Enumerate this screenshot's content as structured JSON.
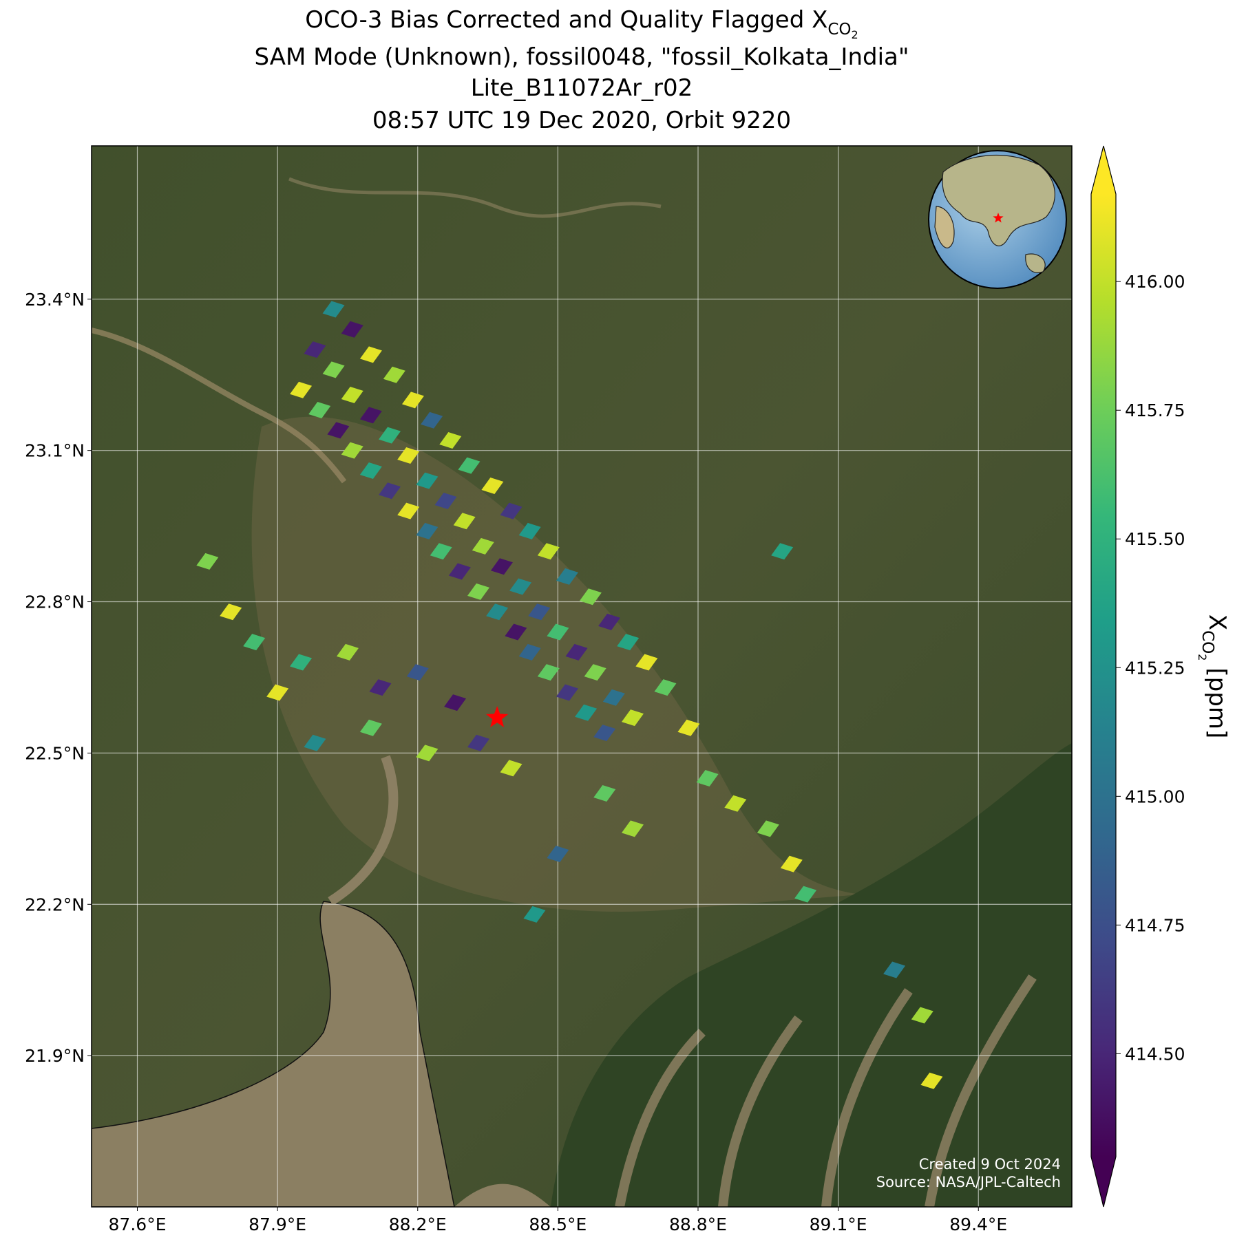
{
  "chart_data": {
    "type": "map",
    "title_lines": [
      "OCO-3 Bias Corrected and Quality Flagged X",
      "SAM Mode (Unknown), fossil0048, \"fossil_Kolkata_India\"",
      "Lite_B11072Ar_r02",
      "08:57 UTC 19 Dec 2020, Orbit 9220"
    ],
    "symbol": {
      "base": "X",
      "sub": "CO",
      "subsub": "2"
    },
    "colorbar_unit": "[ppm]",
    "credits": [
      "Created 9 Oct 2024",
      "Source: NASA/JPL-Caltech"
    ],
    "xlim": [
      87.502,
      89.6
    ],
    "ylim": [
      21.6,
      23.704
    ],
    "xticks": [
      {
        "value": 87.6,
        "label": "87.6°E"
      },
      {
        "value": 87.9,
        "label": "87.9°E"
      },
      {
        "value": 88.2,
        "label": "88.2°E"
      },
      {
        "value": 88.5,
        "label": "88.5°E"
      },
      {
        "value": 88.8,
        "label": "88.8°E"
      },
      {
        "value": 89.1,
        "label": "89.1°E"
      },
      {
        "value": 89.4,
        "label": "89.4°E"
      }
    ],
    "yticks": [
      {
        "value": 21.9,
        "label": "21.9°N"
      },
      {
        "value": 22.2,
        "label": "22.2°N"
      },
      {
        "value": 22.5,
        "label": "22.5°N"
      },
      {
        "value": 22.8,
        "label": "22.8°N"
      },
      {
        "value": 23.1,
        "label": "23.1°N"
      },
      {
        "value": 23.4,
        "label": "23.4°N"
      }
    ],
    "grid": true,
    "clim": [
      414.3,
      416.17
    ],
    "cticks": [
      {
        "value": 414.5,
        "label": "414.50"
      },
      {
        "value": 414.75,
        "label": "414.75"
      },
      {
        "value": 415.0,
        "label": "415.00"
      },
      {
        "value": 415.25,
        "label": "415.25"
      },
      {
        "value": 415.5,
        "label": "415.50"
      },
      {
        "value": 415.75,
        "label": "415.75"
      },
      {
        "value": 416.0,
        "label": "416.00"
      }
    ],
    "colormap": [
      "#440154",
      "#482878",
      "#3e4a89",
      "#31688e",
      "#26828e",
      "#1f9e89",
      "#35b779",
      "#6ece58",
      "#b5de2b",
      "#fde725"
    ],
    "target": {
      "lon": 88.37,
      "lat": 22.57,
      "color": "#ff0000"
    },
    "soundings": {
      "lon": [
        88.02,
        88.06,
        88.1,
        88.15,
        88.19,
        88.23,
        88.27,
        88.31,
        88.36,
        88.4,
        88.44,
        88.48,
        88.52,
        88.57,
        88.61,
        88.65,
        88.69,
        88.73,
        87.98,
        88.02,
        88.06,
        88.1,
        88.14,
        88.18,
        88.22,
        88.26,
        88.3,
        88.34,
        88.38,
        88.42,
        88.46,
        88.5,
        88.54,
        88.58,
        88.62,
        88.66,
        87.95,
        87.99,
        88.03,
        88.06,
        88.1,
        88.14,
        88.18,
        88.22,
        88.25,
        88.29,
        88.33,
        88.37,
        88.41,
        88.44,
        88.48,
        88.52,
        88.56,
        88.6,
        87.75,
        87.8,
        87.85,
        87.9,
        87.95,
        88.05,
        88.12,
        88.2,
        88.28,
        88.1,
        87.98,
        88.22,
        88.33,
        88.4,
        88.78,
        88.82,
        88.88,
        88.95,
        89.0,
        89.03,
        88.6,
        88.66,
        88.5,
        88.45,
        88.98,
        89.22,
        89.28,
        89.3
      ],
      "lat": [
        23.38,
        23.34,
        23.29,
        23.25,
        23.2,
        23.16,
        23.12,
        23.07,
        23.03,
        22.98,
        22.94,
        22.9,
        22.85,
        22.81,
        22.76,
        22.72,
        22.68,
        22.63,
        23.3,
        23.26,
        23.21,
        23.17,
        23.13,
        23.09,
        23.04,
        23.0,
        22.96,
        22.91,
        22.87,
        22.83,
        22.78,
        22.74,
        22.7,
        22.66,
        22.61,
        22.57,
        23.22,
        23.18,
        23.14,
        23.1,
        23.06,
        23.02,
        22.98,
        22.94,
        22.9,
        22.86,
        22.82,
        22.78,
        22.74,
        22.7,
        22.66,
        22.62,
        22.58,
        22.54,
        22.88,
        22.78,
        22.72,
        22.62,
        22.68,
        22.7,
        22.63,
        22.66,
        22.6,
        22.55,
        22.52,
        22.5,
        22.52,
        22.47,
        22.55,
        22.45,
        22.4,
        22.35,
        22.28,
        22.22,
        22.42,
        22.35,
        22.3,
        22.18,
        22.9,
        22.07,
        21.98,
        21.85
      ],
      "xco2": [
        415.2,
        414.4,
        416.1,
        415.9,
        416.1,
        414.9,
        416.0,
        415.6,
        416.1,
        414.6,
        415.3,
        416.0,
        415.1,
        415.8,
        414.5,
        415.4,
        416.1,
        415.7,
        414.5,
        415.8,
        416.0,
        414.4,
        415.5,
        416.1,
        415.3,
        414.7,
        416.0,
        415.9,
        414.4,
        415.2,
        414.8,
        415.6,
        414.5,
        415.8,
        415.0,
        416.0,
        416.1,
        415.7,
        414.4,
        415.9,
        415.4,
        414.6,
        416.1,
        415.0,
        415.6,
        414.5,
        415.8,
        415.2,
        414.4,
        414.9,
        415.7,
        414.6,
        415.3,
        414.8,
        415.8,
        416.1,
        415.6,
        416.1,
        415.5,
        415.9,
        414.5,
        414.8,
        414.4,
        415.7,
        415.2,
        415.9,
        414.6,
        416.0,
        416.1,
        415.7,
        416.0,
        415.8,
        416.1,
        415.6,
        415.7,
        415.9,
        414.9,
        415.3,
        415.4,
        415.1,
        415.9,
        416.1
      ]
    }
  }
}
